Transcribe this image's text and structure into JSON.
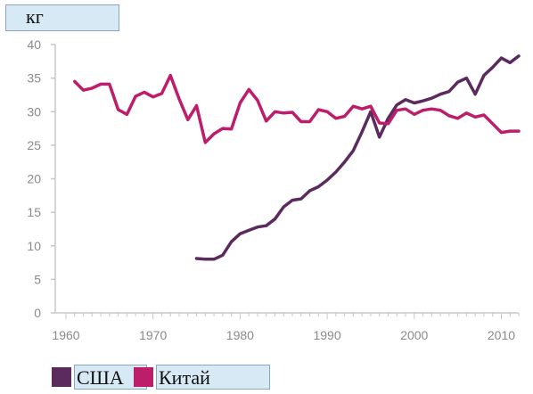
{
  "unit_label": "кг",
  "colors": {
    "usa": "#5b2b5e",
    "china": "#bd1e6c",
    "axis": "#c8c8c8",
    "tick_text": "#8a8a8a",
    "label_bg": "#d6e9f5"
  },
  "legend": [
    {
      "label": "США",
      "color": "#5b2b5e"
    },
    {
      "label": "Китай",
      "color": "#bd1e6c"
    }
  ],
  "chart_data": {
    "type": "line",
    "title": "",
    "xlabel": "",
    "ylabel": "кг",
    "xlim": [
      1960,
      2012
    ],
    "ylim": [
      0,
      40
    ],
    "xticks": [
      1960,
      1970,
      1980,
      1990,
      2000,
      2010
    ],
    "yticks": [
      0,
      5,
      10,
      15,
      20,
      25,
      30,
      35,
      40
    ],
    "grid": false,
    "legend_position": "bottom-left",
    "series": [
      {
        "name": "США",
        "color": "#5b2b5e",
        "x": [
          1975,
          1976,
          1977,
          1978,
          1979,
          1980,
          1981,
          1982,
          1983,
          1984,
          1985,
          1986,
          1987,
          1988,
          1989,
          1990,
          1991,
          1992,
          1993,
          1994,
          1995,
          1996,
          1997,
          1998,
          1999,
          2000,
          2001,
          2002,
          2003,
          2004,
          2005,
          2006,
          2007,
          2008,
          2009,
          2010,
          2011,
          2012
        ],
        "y": [
          8.1,
          8.0,
          8.0,
          8.6,
          10.6,
          11.8,
          12.3,
          12.8,
          13.0,
          14.0,
          15.8,
          16.8,
          17.0,
          18.2,
          18.8,
          19.8,
          21.0,
          22.5,
          24.2,
          27.0,
          30.0,
          26.2,
          29.0,
          31.0,
          31.8,
          31.3,
          31.6,
          32.0,
          32.6,
          33.0,
          34.4,
          35.0,
          32.6,
          35.4,
          36.6,
          38.0,
          37.3,
          38.3
        ]
      },
      {
        "name": "Китай",
        "color": "#bd1e6c",
        "x": [
          1961,
          1962,
          1963,
          1964,
          1965,
          1966,
          1967,
          1968,
          1969,
          1970,
          1971,
          1972,
          1973,
          1974,
          1975,
          1976,
          1977,
          1978,
          1979,
          1980,
          1981,
          1982,
          1983,
          1984,
          1985,
          1986,
          1987,
          1988,
          1989,
          1990,
          1991,
          1992,
          1993,
          1994,
          1995,
          1996,
          1997,
          1998,
          1999,
          2000,
          2001,
          2002,
          2003,
          2004,
          2005,
          2006,
          2007,
          2008,
          2009,
          2010,
          2011,
          2012
        ],
        "y": [
          34.5,
          33.2,
          33.5,
          34.1,
          34.1,
          30.3,
          29.6,
          32.3,
          32.9,
          32.2,
          32.7,
          35.4,
          31.9,
          28.8,
          30.9,
          25.4,
          26.7,
          27.5,
          27.4,
          31.3,
          33.3,
          31.7,
          28.6,
          30.0,
          29.8,
          29.9,
          28.5,
          28.5,
          30.3,
          30.0,
          29.0,
          29.3,
          30.8,
          30.4,
          30.8,
          28.3,
          28.2,
          30.2,
          30.4,
          29.6,
          30.2,
          30.4,
          30.2,
          29.4,
          29.0,
          29.8,
          29.2,
          29.5,
          28.2,
          26.9,
          27.1,
          27.1
        ]
      }
    ]
  }
}
